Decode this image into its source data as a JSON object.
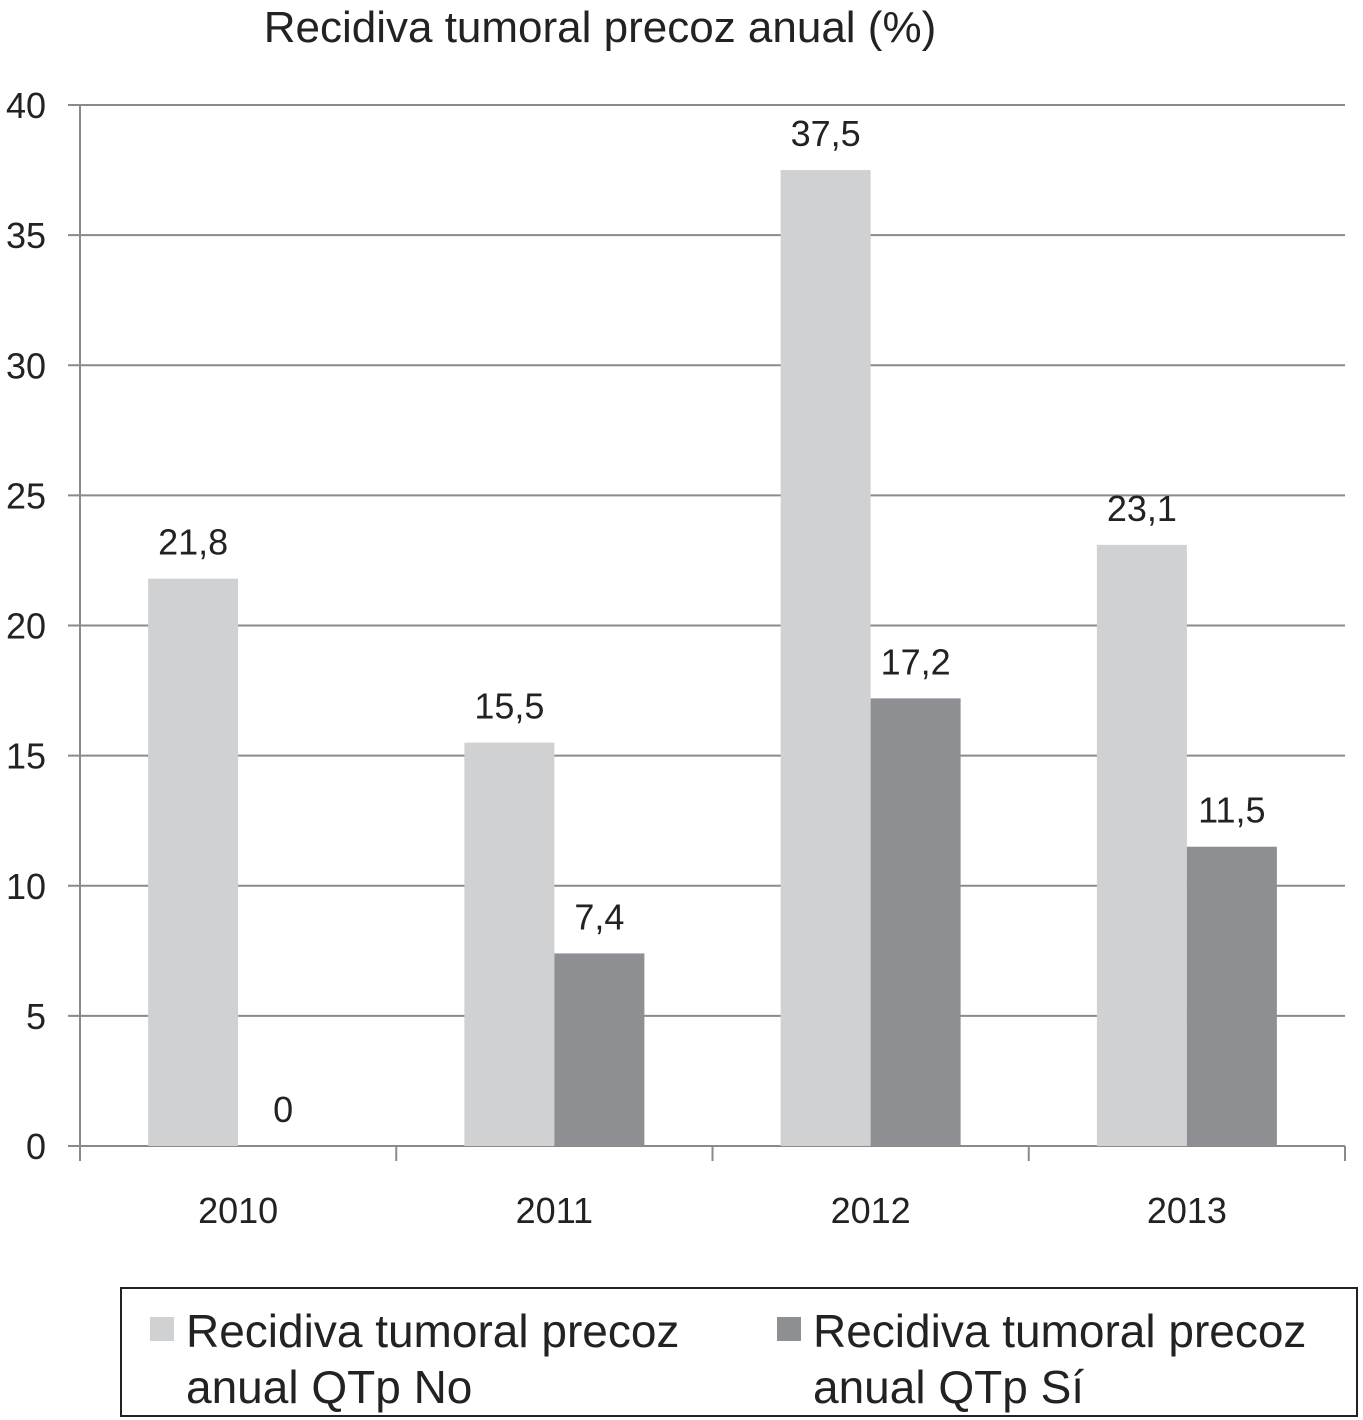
{
  "chart_data": {
    "type": "bar",
    "title": "Recidiva tumoral precoz anual (%)",
    "xlabel": "",
    "ylabel": "",
    "categories": [
      "2010",
      "2011",
      "2012",
      "2013"
    ],
    "ylim": [
      0,
      40
    ],
    "yticks": [
      "0",
      "5",
      "10",
      "15",
      "20",
      "25",
      "30",
      "35",
      "40"
    ],
    "grid": true,
    "legend_position": "bottom",
    "series": [
      {
        "name": "Recidiva tumoral precoz anual QTp No",
        "values": [
          21.8,
          15.5,
          37.5,
          23.1
        ],
        "labels": [
          "21,8",
          "15,5",
          "37,5",
          "23,1"
        ],
        "color": "#d0d1d3"
      },
      {
        "name": "Recidiva tumoral precoz anual QTp Sí",
        "values": [
          0,
          7.4,
          17.2,
          11.5
        ],
        "labels": [
          "0",
          "7,4",
          "17,2",
          "11,5"
        ],
        "color": "#8e8f93"
      }
    ]
  }
}
